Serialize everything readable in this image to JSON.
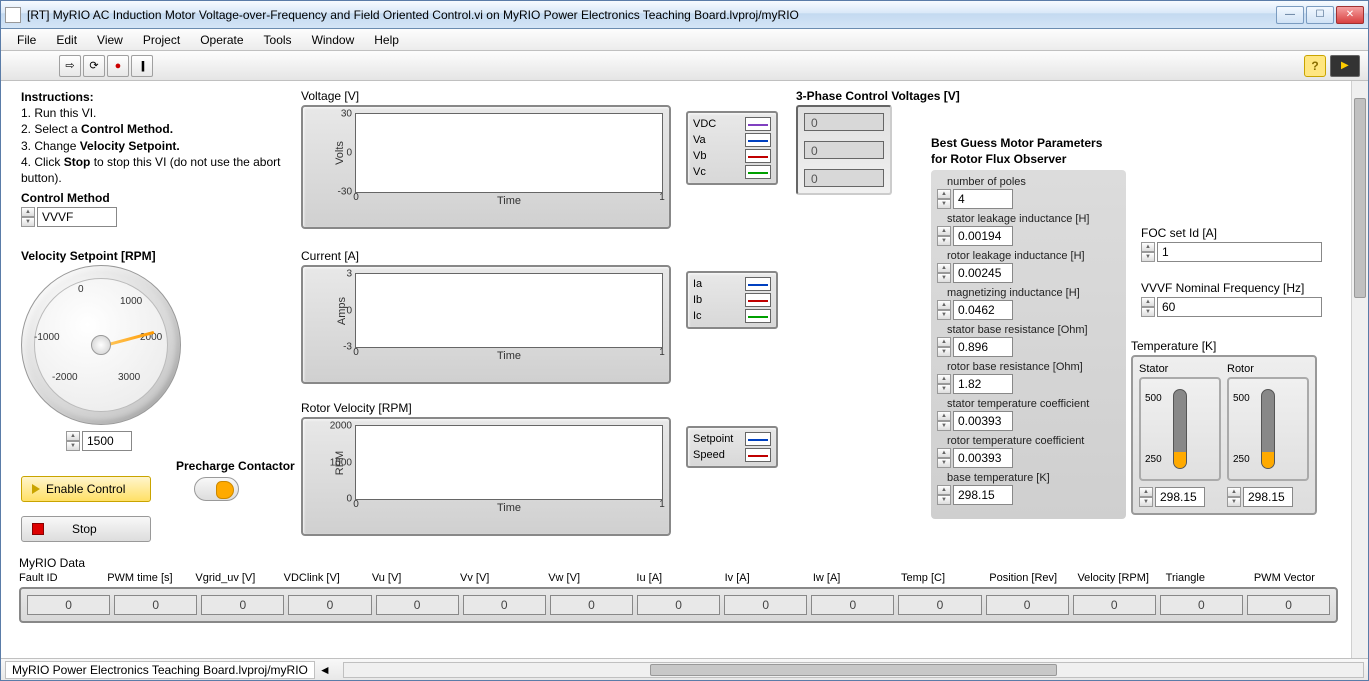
{
  "window": {
    "title": "[RT] MyRIO AC Induction Motor Voltage-over-Frequency and Field Oriented Control.vi on MyRIO Power Electronics Teaching Board.lvproj/myRIO"
  },
  "menu": [
    "File",
    "Edit",
    "View",
    "Project",
    "Operate",
    "Tools",
    "Window",
    "Help"
  ],
  "toolbar": {
    "run_icon": "⇨",
    "run_cont_icon": "⟳",
    "abort_icon": "●",
    "pause_icon": "||",
    "help_icon": "?",
    "hl_icon": "▶"
  },
  "instructions": {
    "title": "Instructions:",
    "line1": "1. Run this VI.",
    "line2a": "2. Select a ",
    "line2b": "Control Method.",
    "line3a": "3. Change ",
    "line3b": "Velocity Setpoint.",
    "line4a": "4. Click ",
    "line4b": "Stop",
    "line4c": " to stop this VI (do not use the abort button)."
  },
  "control_method": {
    "label": "Control Method",
    "value": "VVVF"
  },
  "velocity_setpoint": {
    "label": "Velocity Setpoint [RPM]",
    "value": "1500",
    "ticks": {
      "t0": "0",
      "t1000": "1000",
      "tm1000": "-1000",
      "t2000": "2000",
      "tm2000": "-2000",
      "t3000": "3000"
    }
  },
  "enable_control": "Enable Control",
  "stop_btn": "Stop",
  "precharge": "Precharge Contactor",
  "charts": {
    "voltage": {
      "title": "Voltage [V]",
      "ylabel": "Volts",
      "xlabel": "Time",
      "ylim": [
        "-30",
        "30",
        "0"
      ],
      "xlim": [
        "0",
        "1"
      ],
      "legend": [
        {
          "name": "VDC",
          "color": "#8040c0"
        },
        {
          "name": "Va",
          "color": "#0040c0"
        },
        {
          "name": "Vb",
          "color": "#c00000"
        },
        {
          "name": "Vc",
          "color": "#00a000"
        }
      ]
    },
    "current": {
      "title": "Current [A]",
      "ylabel": "Amps",
      "xlabel": "Time",
      "ylim": [
        "-3",
        "3",
        "0"
      ],
      "xlim": [
        "0",
        "1"
      ],
      "legend": [
        {
          "name": "Ia",
          "color": "#0040c0"
        },
        {
          "name": "Ib",
          "color": "#c00000"
        },
        {
          "name": "Ic",
          "color": "#00a000"
        }
      ]
    },
    "rpm": {
      "title": "Rotor Velocity [RPM]",
      "ylabel": "RPM",
      "xlabel": "Time",
      "ylim": [
        "0",
        "2000",
        "1000"
      ],
      "xlim": [
        "0",
        "1"
      ],
      "legend": [
        {
          "name": "Setpoint",
          "color": "#0040c0"
        },
        {
          "name": "Speed",
          "color": "#c00000"
        }
      ]
    }
  },
  "three_phase": {
    "title": "3-Phase Control Voltages [V]",
    "v1": "0",
    "v2": "0",
    "v3": "0"
  },
  "params": {
    "title1": "Best Guess Motor Parameters",
    "title2": "for Rotor Flux Observer",
    "rows": [
      {
        "label": "number of poles",
        "value": "4"
      },
      {
        "label": "stator leakage inductance [H]",
        "value": "0.00194"
      },
      {
        "label": "rotor leakage inductance [H]",
        "value": "0.00245"
      },
      {
        "label": "magnetizing inductance [H]",
        "value": "0.0462"
      },
      {
        "label": "stator base resistance [Ohm]",
        "value": "0.896"
      },
      {
        "label": "rotor base resistance [Ohm]",
        "value": "1.82"
      },
      {
        "label": "stator temperature coefficient",
        "value": "0.00393"
      },
      {
        "label": "rotor temperature coefficient",
        "value": "0.00393"
      },
      {
        "label": "base temperature [K]",
        "value": "298.15"
      }
    ]
  },
  "foc_id": {
    "label": "FOC set Id [A]",
    "value": "1"
  },
  "vvvf_freq": {
    "label": "VVVF Nominal Frequency [Hz]",
    "value": "60"
  },
  "temperature": {
    "title": "Temperature [K]",
    "stator_label": "Stator",
    "rotor_label": "Rotor",
    "scale_hi": "500",
    "scale_lo": "250",
    "stator_val": "298.15",
    "rotor_val": "298.15"
  },
  "myrio_data": {
    "title": "MyRIO Data",
    "cols": [
      {
        "label": "Fault ID",
        "value": "0"
      },
      {
        "label": "PWM time [s]",
        "value": "0"
      },
      {
        "label": "Vgrid_uv [V]",
        "value": "0"
      },
      {
        "label": "VDClink [V]",
        "value": "0"
      },
      {
        "label": "Vu [V]",
        "value": "0"
      },
      {
        "label": "Vv [V]",
        "value": "0"
      },
      {
        "label": "Vw [V]",
        "value": "0"
      },
      {
        "label": "Iu [A]",
        "value": "0"
      },
      {
        "label": "Iv [A]",
        "value": "0"
      },
      {
        "label": "Iw [A]",
        "value": "0"
      },
      {
        "label": "Temp [C]",
        "value": "0"
      },
      {
        "label": "Position [Rev]",
        "value": "0"
      },
      {
        "label": "Velocity [RPM]",
        "value": "0"
      },
      {
        "label": "Triangle",
        "value": "0"
      },
      {
        "label": "PWM Vector",
        "value": "0"
      }
    ]
  },
  "statusbar": {
    "path": "MyRIO Power Electronics Teaching Board.lvproj/myRIO",
    "arrow": "◄"
  }
}
